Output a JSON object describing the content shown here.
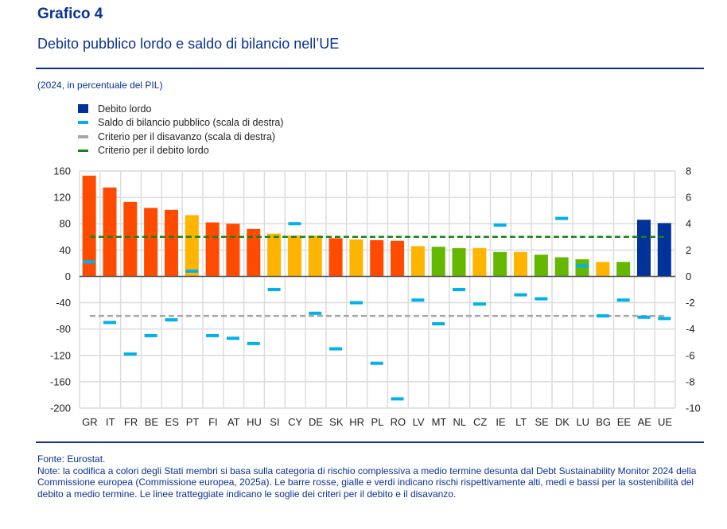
{
  "header": {
    "title": "Grafico 4",
    "subtitle": "Debito pubblico lordo e saldo di bilancio nell’UE",
    "unit_note": "(2024, in percentuale del PIL)"
  },
  "legend": [
    {
      "label": "Debito lordo",
      "color": "#003299",
      "shape": "square"
    },
    {
      "label": "Saldo di bilancio pubblico (scala di destra)",
      "color": "#00b1ea",
      "shape": "dash"
    },
    {
      "label": "Criterio per il disavanzo (scala di destra)",
      "color": "#a6a6a6",
      "shape": "dash"
    },
    {
      "label": "Criterio per il debito lordo",
      "color": "#1a7f1a",
      "shape": "dash"
    }
  ],
  "footer": {
    "source": "Fonte: Eurostat.",
    "note": "Note: la codifica a colori degli Stati membri si basa sulla categoria di rischio complessiva a medio termine desunta dal Debt Sustainability Monitor 2024 della Commissione europea (Commissione europea, 2025a). Le barre rosse, gialle e verdi indicano rischi rispettivamente alti, medi e bassi per la sostenibilità del debito a medio termine. Le linee tratteggiate indicano le soglie dei criteri per il debito e il disavanzo."
  },
  "colors": {
    "high": "#ff4b00",
    "medium": "#ffb400",
    "low": "#65b800",
    "aggregate": "#003299",
    "balance": "#00b1ea",
    "deficit_line": "#a6a6a6",
    "debt_line": "#1a7f1a"
  },
  "chart_data": {
    "type": "bar",
    "categories": [
      "GR",
      "IT",
      "FR",
      "BE",
      "ES",
      "PT",
      "FI",
      "AT",
      "HU",
      "SI",
      "CY",
      "DE",
      "SK",
      "HR",
      "PL",
      "RO",
      "LV",
      "MT",
      "NL",
      "CZ",
      "IE",
      "LT",
      "SE",
      "DK",
      "LU",
      "BG",
      "EE",
      "AE",
      "UE"
    ],
    "risk": [
      "high",
      "high",
      "high",
      "high",
      "high",
      "medium",
      "high",
      "high",
      "high",
      "medium",
      "medium",
      "medium",
      "high",
      "medium",
      "high",
      "high",
      "medium",
      "low",
      "low",
      "medium",
      "low",
      "medium",
      "low",
      "low",
      "low",
      "medium",
      "low",
      "aggregate",
      "aggregate"
    ],
    "series": [
      {
        "name": "Debito lordo",
        "axis": "left",
        "values": [
          153,
          135,
          113,
          104,
          101,
          93,
          82,
          80,
          72,
          65,
          62,
          62,
          58,
          56,
          55,
          54,
          46,
          45,
          43,
          43,
          37,
          37,
          33,
          29,
          26,
          22,
          22,
          86,
          81
        ]
      },
      {
        "name": "Saldo di bilancio pubblico (scala di destra)",
        "axis": "right",
        "values": [
          1.1,
          -3.5,
          -5.9,
          -4.5,
          -3.3,
          0.4,
          -4.5,
          -4.7,
          -5.1,
          -1.0,
          4.0,
          -2.8,
          -5.5,
          -2.0,
          -6.6,
          -9.3,
          -1.8,
          -3.6,
          -1.0,
          -2.1,
          3.9,
          -1.4,
          -1.7,
          4.4,
          0.8,
          -3.0,
          -1.8,
          -3.1,
          -3.2
        ]
      }
    ],
    "reference_lines": [
      {
        "name": "Criterio per il debito lordo",
        "axis": "left",
        "value": 60
      },
      {
        "name": "Criterio per il disavanzo (scala di destra)",
        "axis": "right",
        "value": -3
      }
    ],
    "title": "Debito pubblico lordo e saldo di bilancio nell’UE",
    "xlabel": "",
    "ylabel": "",
    "ylim": [
      -200,
      160
    ],
    "y_ticks": [
      160,
      120,
      80,
      40,
      0,
      -40,
      -80,
      -120,
      -160,
      -200
    ],
    "y2lim": [
      -10,
      8
    ],
    "y2_ticks": [
      8,
      6,
      4,
      2,
      0,
      -2,
      -4,
      -6,
      -8,
      -10
    ],
    "grid": true,
    "legend_position": "top-left"
  }
}
